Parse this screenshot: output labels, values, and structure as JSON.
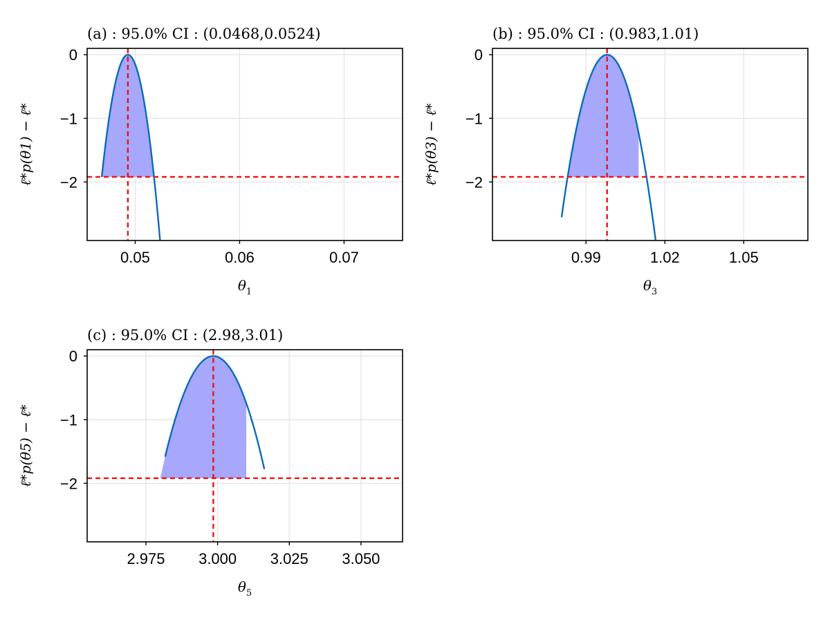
{
  "chart_data": [
    {
      "type": "line",
      "panel": "(a)",
      "title": "(a) :  95.0% CI :  (0.0468,0.0524)",
      "xlabel": "θ",
      "xlabel_sub": "1",
      "ylabel": "ℓ*p(θ1) − ℓ*",
      "xlim": [
        0.0454,
        0.0756
      ],
      "ylim": [
        -2.92,
        0.1
      ],
      "xticks": [
        0.05,
        0.06,
        0.07
      ],
      "xtick_labels": [
        "0.05",
        "0.06",
        "0.07"
      ],
      "yticks": [
        0,
        -1,
        -2
      ],
      "ytick_labels": [
        "0",
        "−1",
        "−2"
      ],
      "grid": true,
      "mle": 0.0493,
      "threshold": -1.92,
      "ci": [
        0.0468,
        0.0524
      ],
      "curve_range": [
        0.0468,
        0.0531
      ]
    },
    {
      "type": "line",
      "panel": "(b)",
      "title": "(b) :  95.0% CI :  (0.983,1.01)",
      "xlabel": "θ",
      "xlabel_sub": "3",
      "ylabel": "ℓ*p(θ3) − ℓ*",
      "xlim": [
        0.9544,
        1.0744
      ],
      "ylim": [
        -2.92,
        0.1
      ],
      "xticks": [
        0.99,
        1.02,
        1.05
      ],
      "xtick_labels": [
        "0.99",
        "1.02",
        "1.05"
      ],
      "yticks": [
        0,
        -1,
        -2
      ],
      "ytick_labels": [
        "0",
        "−1",
        "−2"
      ],
      "grid": true,
      "mle": 0.998,
      "threshold": -1.92,
      "ci": [
        0.983,
        1.01
      ],
      "curve_range": [
        0.9807,
        1.0167
      ]
    },
    {
      "type": "line",
      "panel": "(c)",
      "title": "(c) :  95.0% CI :  (2.98,3.01)",
      "xlabel": "θ",
      "xlabel_sub": "5",
      "ylabel": "ℓ*p(θ5) − ℓ*",
      "xlim": [
        2.9545,
        3.0645
      ],
      "ylim": [
        -2.92,
        0.1
      ],
      "xticks": [
        2.975,
        3.0,
        3.025,
        3.05
      ],
      "xtick_labels": [
        "2.975",
        "3.000",
        "3.025",
        "3.050"
      ],
      "yticks": [
        0,
        -1,
        -2
      ],
      "ytick_labels": [
        "0",
        "−1",
        "−2"
      ],
      "grid": true,
      "mle": 2.9985,
      "threshold": -1.92,
      "ci": [
        2.98,
        3.01
      ],
      "curve_range": [
        2.9817,
        3.0163
      ]
    }
  ],
  "colors": {
    "curve": "#0b6bb8",
    "ci_fill": "#a7a7fb",
    "reference_lines": "#ee1111",
    "grid": "#e3e3e3"
  }
}
